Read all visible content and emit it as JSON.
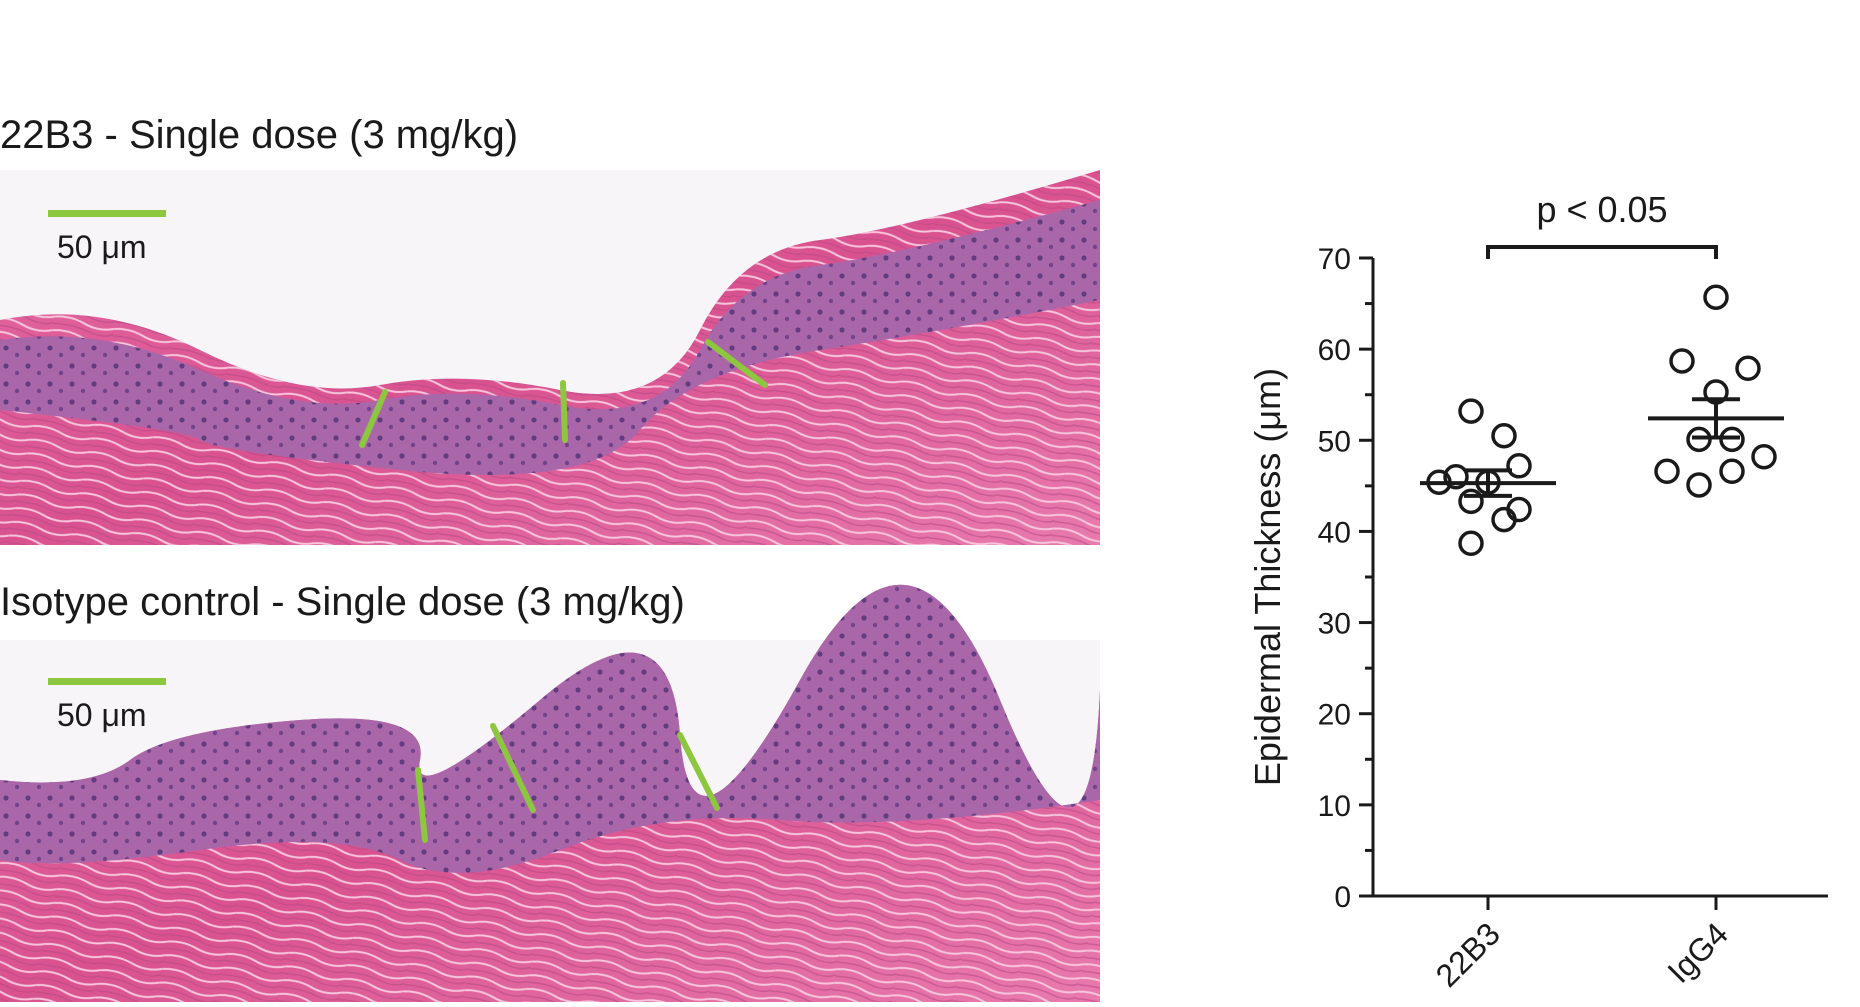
{
  "panels": [
    {
      "title": "22B3 - Single dose (3 mg/kg)",
      "scale_label": "50 μm"
    },
    {
      "title": "Isotype control - Single dose (3 mg/kg)",
      "scale_label": "50 μm"
    }
  ],
  "chart_data": {
    "type": "dotplot",
    "ylabel": "Epidermal Thickness (μm)",
    "categories": [
      "22B3",
      "IgG4"
    ],
    "values": [
      [
        53.2,
        50.5,
        47.2,
        45.4,
        46.0,
        45.4,
        43.3,
        41.3,
        42.4,
        38.7
      ],
      [
        65.7,
        58.7,
        57.9,
        55.3,
        50.1,
        50.1,
        48.2,
        46.6,
        45.1,
        46.6
      ]
    ],
    "mean": [
      45.3,
      52.4
    ],
    "sem": [
      1.4,
      2.1
    ],
    "color": "#1a1a1a",
    "annotation": "p < 0.05",
    "ylim": [
      0,
      70
    ],
    "yticks": [
      0,
      10,
      20,
      30,
      40,
      50,
      60,
      70
    ]
  }
}
